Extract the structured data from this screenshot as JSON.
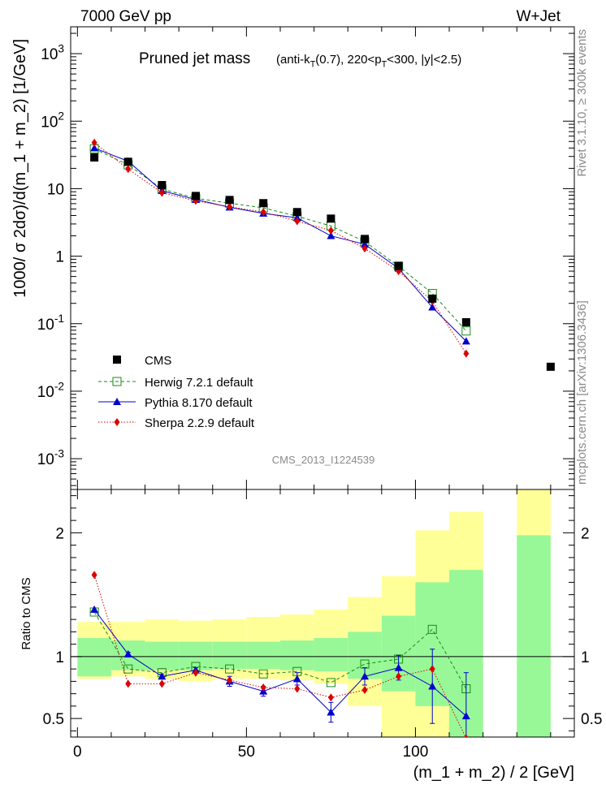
{
  "header": {
    "left": "7000 GeV pp",
    "right": "W+Jet"
  },
  "side_labels": {
    "top": "Rivet 3.1.10, ≥ 300k events",
    "bottom": "mcplots.cern.ch [arXiv:1306.3436]"
  },
  "watermark": "CMS_2013_I1224539",
  "chart_data": [
    {
      "type": "scatter",
      "title": "Pruned jet mass",
      "subtitle": "(anti-k_T(0.7), 220<p_T<300, |y|<2.5)",
      "xlabel": "(m_1 + m_2) / 2 [GeV]",
      "ylabel": "1000/ σ 2dσ)/d(m_1 + m_2) [1/GeV]",
      "yscale": "log",
      "xlim": [
        -2,
        147
      ],
      "ylim": [
        0.00035,
        2500
      ],
      "ytick_labels": [
        "10^-3",
        "10^-2",
        "10^-1",
        "1",
        "10",
        "10^2",
        "10^3"
      ],
      "legend_position": "lower-left",
      "series": [
        {
          "name": "CMS",
          "color": "#000000",
          "marker": "square",
          "x": [
            5,
            15,
            25,
            35,
            45,
            55,
            65,
            75,
            85,
            95,
            105,
            115,
            140
          ],
          "y": [
            29,
            25,
            11.3,
            7.8,
            6.8,
            6.1,
            4.5,
            3.6,
            1.8,
            0.72,
            0.235,
            0.105,
            0.023
          ]
        },
        {
          "name": "Herwig 7.2.1 default",
          "color": "#1a8a1a",
          "marker": "open-square",
          "line": "dashed",
          "x": [
            5,
            15,
            25,
            35,
            45,
            55,
            65,
            75,
            85,
            95,
            105,
            115
          ],
          "y": [
            39,
            22.5,
            9.9,
            7.2,
            6.1,
            5.2,
            3.9,
            2.8,
            1.65,
            0.71,
            0.28,
            0.078
          ]
        },
        {
          "name": "Pythia 8.170 default",
          "color": "#0000cc",
          "marker": "triangle",
          "line": "solid",
          "x": [
            5,
            15,
            25,
            35,
            45,
            55,
            65,
            75,
            85,
            95,
            105,
            115
          ],
          "y": [
            40,
            25.5,
            9.3,
            6.9,
            5.3,
            4.3,
            3.7,
            2.0,
            1.5,
            0.66,
            0.175,
            0.055
          ]
        },
        {
          "name": "Sherpa 2.2.9 default",
          "color": "#dd0000",
          "marker": "diamond",
          "line": "dotted",
          "x": [
            5,
            15,
            25,
            35,
            45,
            55,
            65,
            75,
            85,
            95,
            105,
            115
          ],
          "y": [
            48,
            19.5,
            8.7,
            6.6,
            5.4,
            4.5,
            3.3,
            2.4,
            1.3,
            0.6,
            0.215,
            0.036
          ]
        }
      ]
    },
    {
      "type": "scatter",
      "xlabel": "(m_1 + m_2) / 2 [GeV]",
      "ylabel": "Ratio to CMS",
      "xlim": [
        -2,
        147
      ],
      "ylim": [
        0.35,
        2.35
      ],
      "xticks": [
        0,
        50,
        100
      ],
      "yticks": [
        0.5,
        1,
        2
      ],
      "reference_line": 1,
      "uncertainty_bands": {
        "edges": [
          0,
          10,
          20,
          30,
          40,
          50,
          60,
          70,
          80,
          90,
          100,
          110,
          120,
          130,
          140
        ],
        "inner": [
          [
            0.84,
            1.15
          ],
          [
            0.89,
            1.13
          ],
          [
            0.89,
            1.12
          ],
          [
            0.89,
            1.12
          ],
          [
            0.9,
            1.12
          ],
          [
            0.9,
            1.12
          ],
          [
            0.89,
            1.13
          ],
          [
            0.88,
            1.15
          ],
          [
            0.82,
            1.2
          ],
          [
            0.72,
            1.33
          ],
          [
            0.6,
            1.6
          ],
          [
            0.35,
            1.7
          ],
          null,
          [
            0.35,
            1.98
          ]
        ],
        "outer": [
          [
            0.82,
            1.28
          ],
          [
            0.84,
            1.28
          ],
          [
            0.82,
            1.3
          ],
          [
            0.8,
            1.29
          ],
          [
            0.82,
            1.3
          ],
          [
            0.82,
            1.32
          ],
          [
            0.81,
            1.34
          ],
          [
            0.78,
            1.38
          ],
          [
            0.6,
            1.48
          ],
          [
            0.35,
            1.65
          ],
          [
            0.35,
            2.02
          ],
          [
            0.35,
            2.17
          ],
          null,
          [
            0.35,
            2.35
          ]
        ],
        "inner_color": "#98f898",
        "outer_color": "#ffff98"
      },
      "series": [
        {
          "name": "Herwig 7.2.1 default",
          "color": "#1a8a1a",
          "marker": "open-square",
          "line": "dashed",
          "x": [
            5,
            15,
            25,
            35,
            45,
            55,
            65,
            75,
            85,
            95,
            105,
            115
          ],
          "y": [
            1.36,
            0.9,
            0.87,
            0.92,
            0.9,
            0.86,
            0.88,
            0.79,
            0.94,
            0.98,
            1.22,
            0.74
          ]
        },
        {
          "name": "Pythia 8.170 default",
          "color": "#0000cc",
          "marker": "triangle",
          "line": "solid",
          "x": [
            5,
            15,
            25,
            35,
            45,
            55,
            65,
            75,
            85,
            95,
            105,
            115
          ],
          "y": [
            1.38,
            1.02,
            0.84,
            0.89,
            0.8,
            0.72,
            0.82,
            0.55,
            0.84,
            0.91,
            0.76,
            0.52
          ],
          "err": [
            0,
            0.015,
            0.02,
            0.02,
            0.04,
            0.04,
            0.05,
            0.08,
            0.07,
            0.1,
            0.3,
            0.35
          ]
        },
        {
          "name": "Sherpa 2.2.9 default",
          "color": "#dd0000",
          "marker": "diamond",
          "line": "dotted",
          "x": [
            5,
            15,
            25,
            35,
            45,
            55,
            65,
            75,
            85,
            95,
            105,
            115
          ],
          "y": [
            1.66,
            0.78,
            0.78,
            0.87,
            0.81,
            0.75,
            0.74,
            0.67,
            0.73,
            0.84,
            0.9,
            0.34
          ]
        }
      ]
    }
  ]
}
